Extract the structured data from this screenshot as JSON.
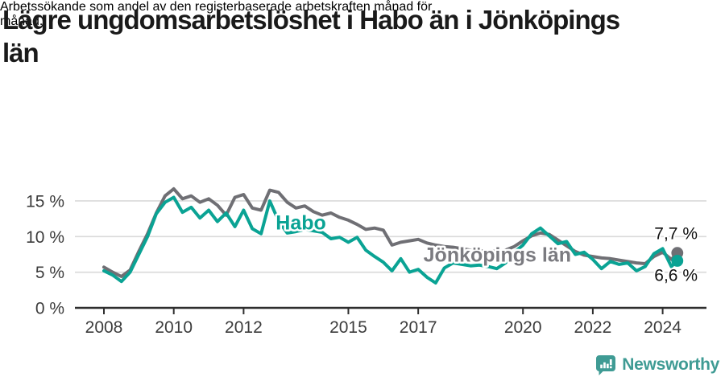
{
  "header": {
    "title_lines": [
      "Lägre ungdomsarbetslöshet i Habo än i Jönköpings",
      "län"
    ],
    "subtitle_lines": [
      "Arbetssökande som andel av den registerbaserade arbetskraften månad för",
      "månad."
    ]
  },
  "chart_data": {
    "type": "line",
    "title": "Lägre ungdomsarbetslöshet i Habo än i Jönköpings län",
    "subtitle": "Arbetssökande som andel av den registerbaserade arbetskraften månad för månad.",
    "unit": "%",
    "ylim": [
      0,
      17.5
    ],
    "grid": "horizontal",
    "legend_position": "inline-labels",
    "x_ticks": [
      {
        "year": 2008,
        "label": "2008"
      },
      {
        "year": 2010,
        "label": "2010"
      },
      {
        "year": 2012,
        "label": "2012"
      },
      {
        "year": 2015,
        "label": "2015"
      },
      {
        "year": 2017,
        "label": "2017"
      },
      {
        "year": 2020,
        "label": "2020"
      },
      {
        "year": 2022,
        "label": "2022"
      },
      {
        "year": 2024,
        "label": "2024"
      }
    ],
    "y_ticks": [
      {
        "value": 0,
        "label": "0 %"
      },
      {
        "value": 5,
        "label": "5 %"
      },
      {
        "value": 10,
        "label": "10 %"
      },
      {
        "value": 15,
        "label": "15 %"
      }
    ],
    "x": [
      2008,
      2008.25,
      2008.5,
      2008.75,
      2009,
      2009.25,
      2009.5,
      2009.75,
      2010,
      2010.25,
      2010.5,
      2010.75,
      2011,
      2011.25,
      2011.5,
      2011.75,
      2012,
      2012.25,
      2012.5,
      2012.75,
      2013,
      2013.25,
      2013.5,
      2013.75,
      2014,
      2014.25,
      2014.5,
      2014.75,
      2015,
      2015.25,
      2015.5,
      2015.75,
      2016,
      2016.25,
      2016.5,
      2016.75,
      2017,
      2017.25,
      2017.5,
      2017.75,
      2018,
      2018.25,
      2018.5,
      2018.75,
      2019,
      2019.25,
      2019.5,
      2019.75,
      2020,
      2020.25,
      2020.5,
      2020.75,
      2021,
      2021.25,
      2021.5,
      2021.75,
      2022,
      2022.25,
      2022.5,
      2022.75,
      2023,
      2023.25,
      2023.5,
      2023.75,
      2024,
      2024.25,
      2024.42
    ],
    "series": [
      {
        "name": "Jönköpings län",
        "color": "#6f6f74",
        "end_label": "7,7 %",
        "end_value": 7.7,
        "values": [
          5.7,
          5.0,
          4.4,
          5.3,
          7.9,
          10.4,
          13.3,
          15.7,
          16.7,
          15.3,
          15.7,
          14.8,
          15.3,
          14.4,
          13.0,
          15.5,
          15.9,
          14.0,
          13.7,
          16.5,
          16.2,
          14.8,
          14.0,
          14.3,
          13.5,
          13.0,
          13.3,
          12.7,
          12.3,
          11.7,
          11.0,
          11.2,
          10.9,
          8.8,
          9.2,
          9.4,
          9.6,
          9.1,
          8.8,
          8.6,
          8.5,
          8.3,
          8.1,
          8.0,
          8.0,
          7.9,
          8.1,
          8.6,
          9.4,
          10.1,
          10.5,
          10.3,
          9.5,
          8.7,
          7.9,
          7.4,
          7.2,
          7.0,
          6.9,
          6.7,
          6.5,
          6.3,
          6.2,
          7.2,
          7.8,
          6.8,
          7.7
        ]
      },
      {
        "name": "Habo",
        "color": "#0aa394",
        "end_label": "6,6 %",
        "end_value": 6.6,
        "values": [
          5.2,
          4.6,
          3.7,
          5.0,
          7.5,
          10.0,
          13.2,
          14.8,
          15.5,
          13.4,
          14.1,
          12.6,
          13.7,
          12.1,
          13.3,
          11.4,
          13.7,
          11.1,
          10.4,
          15.0,
          12.2,
          10.5,
          10.7,
          11.0,
          10.8,
          10.6,
          9.7,
          9.9,
          9.2,
          9.9,
          8.1,
          7.2,
          6.4,
          5.2,
          6.9,
          5.0,
          5.4,
          4.3,
          3.5,
          5.6,
          6.3,
          6.1,
          5.9,
          6.0,
          5.8,
          5.5,
          6.3,
          7.8,
          8.8,
          10.4,
          11.2,
          10.1,
          9.0,
          9.3,
          7.5,
          7.8,
          6.8,
          5.5,
          6.5,
          6.1,
          6.3,
          5.2,
          5.8,
          7.6,
          8.3,
          5.8,
          6.6
        ]
      }
    ],
    "annotations": [
      {
        "text": "Habo",
        "x": 2012.92,
        "y": 11.9,
        "color": "#0aa394"
      },
      {
        "text": "Jönköpings län",
        "x": 2017.15,
        "y": 7.4,
        "color": "#7b7b80"
      }
    ]
  },
  "footer": {
    "brand": "Newsworthy",
    "brand_color": "#3f9b94"
  }
}
